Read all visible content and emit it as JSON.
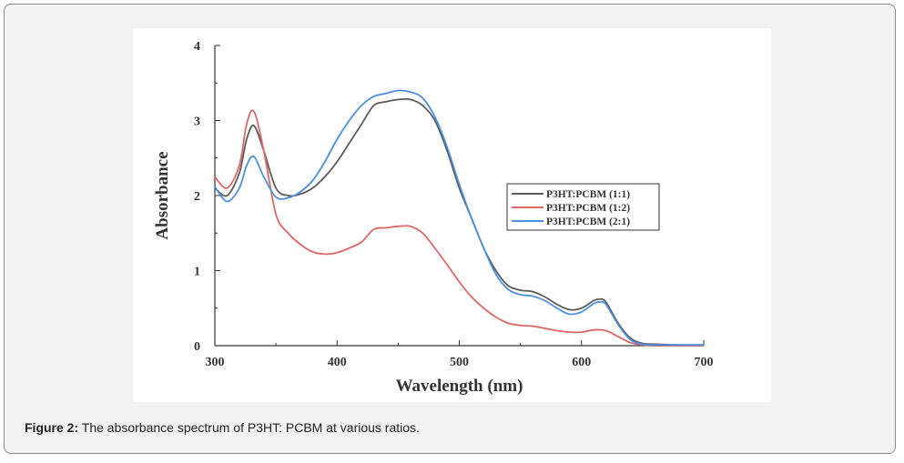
{
  "caption": {
    "label": "Figure 2:",
    "text": "The absorbance spectrum of P3HT: PCBM at various ratios."
  },
  "chart_data": {
    "type": "line",
    "xlabel": "Wavelength (nm)",
    "ylabel": "Absorbance",
    "xlim": [
      300,
      700
    ],
    "ylim": [
      0,
      4
    ],
    "xticks": [
      300,
      400,
      500,
      600,
      700
    ],
    "yticks": [
      0,
      1,
      2,
      3,
      4
    ],
    "grid": false,
    "legend_position": "right",
    "series": [
      {
        "name": "P3HT:PCBM (1:1)",
        "color": "#5a5a5a",
        "x": [
          300,
          310,
          320,
          326,
          332,
          340,
          350,
          360,
          370,
          380,
          390,
          400,
          410,
          420,
          430,
          440,
          450,
          460,
          470,
          480,
          490,
          500,
          510,
          520,
          530,
          540,
          550,
          560,
          570,
          580,
          590,
          600,
          610,
          615,
          620,
          630,
          640,
          650,
          660,
          680,
          700
        ],
        "y": [
          2.1,
          2.0,
          2.3,
          2.75,
          2.93,
          2.6,
          2.1,
          2.0,
          2.02,
          2.1,
          2.25,
          2.45,
          2.7,
          2.95,
          3.2,
          3.25,
          3.28,
          3.28,
          3.2,
          3.0,
          2.6,
          2.1,
          1.7,
          1.3,
          1.0,
          0.8,
          0.74,
          0.72,
          0.65,
          0.55,
          0.48,
          0.5,
          0.6,
          0.62,
          0.58,
          0.3,
          0.1,
          0.03,
          0.02,
          0.01,
          0.01
        ]
      },
      {
        "name": "P3HT:PCBM (1:2)",
        "color": "#e06666",
        "x": [
          300,
          310,
          320,
          326,
          332,
          340,
          350,
          360,
          370,
          380,
          390,
          400,
          410,
          420,
          430,
          440,
          450,
          460,
          470,
          480,
          490,
          500,
          510,
          520,
          530,
          540,
          550,
          560,
          570,
          580,
          590,
          600,
          610,
          620,
          630,
          640,
          650,
          660,
          680,
          700
        ],
        "y": [
          2.25,
          2.1,
          2.4,
          2.95,
          3.12,
          2.6,
          1.75,
          1.5,
          1.35,
          1.25,
          1.22,
          1.24,
          1.3,
          1.38,
          1.55,
          1.57,
          1.59,
          1.59,
          1.5,
          1.3,
          1.08,
          0.85,
          0.65,
          0.5,
          0.38,
          0.3,
          0.27,
          0.26,
          0.23,
          0.2,
          0.18,
          0.18,
          0.21,
          0.2,
          0.12,
          0.04,
          0.01,
          0.0,
          0.0,
          0.0
        ]
      },
      {
        "name": "P3HT:PCBM (2:1)",
        "color": "#4a90e2",
        "x": [
          300,
          310,
          320,
          326,
          332,
          340,
          350,
          360,
          370,
          380,
          390,
          400,
          410,
          420,
          430,
          440,
          450,
          460,
          470,
          480,
          490,
          500,
          510,
          520,
          530,
          540,
          550,
          560,
          570,
          580,
          590,
          600,
          610,
          615,
          620,
          630,
          640,
          650,
          660,
          680,
          700
        ],
        "y": [
          2.12,
          1.92,
          2.1,
          2.4,
          2.52,
          2.25,
          1.98,
          1.97,
          2.05,
          2.2,
          2.45,
          2.75,
          3.0,
          3.2,
          3.32,
          3.36,
          3.4,
          3.38,
          3.3,
          3.05,
          2.65,
          2.15,
          1.7,
          1.3,
          0.95,
          0.75,
          0.68,
          0.66,
          0.6,
          0.5,
          0.42,
          0.45,
          0.56,
          0.58,
          0.55,
          0.28,
          0.08,
          0.02,
          0.01,
          0.01,
          0.01
        ]
      }
    ]
  }
}
